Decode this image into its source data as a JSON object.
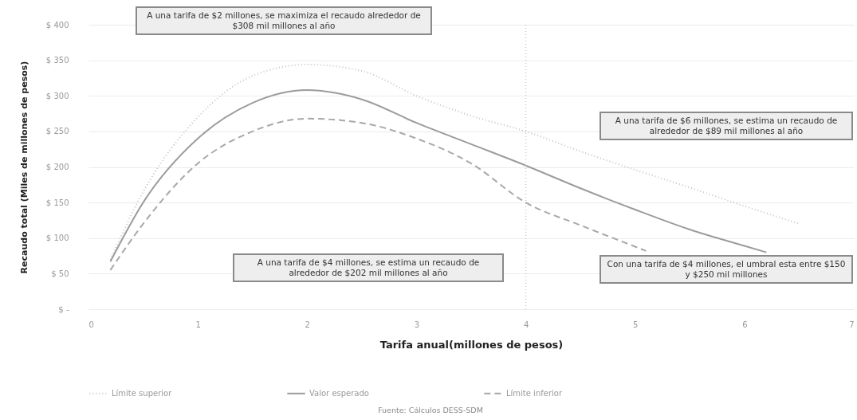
{
  "chart_data": {
    "type": "line",
    "xlabel": "Tarifa anual(millones de pesos)",
    "ylabel": "Recaudo total (Miles de millones de pesos)",
    "xlim": [
      0,
      7
    ],
    "xticks": [
      0,
      1,
      2,
      3,
      4,
      5,
      6,
      7
    ],
    "ylim": [
      0,
      400
    ],
    "yticks": [
      {
        "value": 0,
        "label": "$ -"
      },
      {
        "value": 50,
        "label": "$ 50"
      },
      {
        "value": 100,
        "label": "$ 100"
      },
      {
        "value": 150,
        "label": "$ 150"
      },
      {
        "value": 200,
        "label": "$ 200"
      },
      {
        "value": 250,
        "label": "$ 250"
      },
      {
        "value": 300,
        "label": "$ 300"
      },
      {
        "value": 350,
        "label": "$ 350"
      },
      {
        "value": 400,
        "label": "$ 400"
      }
    ],
    "grid": "y",
    "legend": "bottom",
    "series": [
      {
        "name": "Límite superior",
        "color": "#c4c4c4",
        "line_style": "dotted",
        "x": [
          0.2,
          0.5,
          1,
          1.5,
          2,
          2.5,
          3,
          3.5,
          4,
          4.5,
          5,
          5.5,
          6,
          6.5
        ],
        "values": [
          70,
          165,
          270,
          328,
          344,
          335,
          300,
          272,
          250,
          222,
          196,
          171,
          145,
          120
        ]
      },
      {
        "name": "Valor esperado",
        "color": "#9c9c9c",
        "line_style": "solid",
        "x": [
          0.2,
          0.5,
          1,
          1.5,
          2,
          2.5,
          3,
          3.5,
          4,
          4.5,
          5,
          5.5,
          6,
          6.2
        ],
        "values": [
          67,
          150,
          240,
          290,
          308,
          295,
          262,
          232,
          202,
          170,
          140,
          112,
          89,
          80
        ]
      },
      {
        "name": "Límite inferior",
        "color": "#a8a8a8",
        "line_style": "dashed",
        "x": [
          0.2,
          0.5,
          1,
          1.5,
          2,
          2.5,
          3,
          3.5,
          4,
          4.5,
          5,
          5.1
        ],
        "values": [
          55,
          120,
          205,
          250,
          268,
          262,
          240,
          205,
          150,
          118,
          88,
          82
        ]
      }
    ],
    "ref_lines": [
      {
        "axis": "x",
        "value": 4,
        "color": "#c8c8c8",
        "line_style": "dotted"
      }
    ],
    "annotations": [
      "A una tarifa de $2 millones, se maximiza el recaudo alrededor de $308 mil millones al año",
      "A una tarifa de $6 millones, se estima un recaudo de alrededor de $89 mil millones al año",
      "A una tarifa de $4 millones, se estima un recaudo de alrededor de $202 mil millones al año",
      "Con una tarifa de $4 millones, el umbral esta entre $150 y $250 mil millones",
      "Fuente: Cálculos DESS-SDM"
    ]
  }
}
